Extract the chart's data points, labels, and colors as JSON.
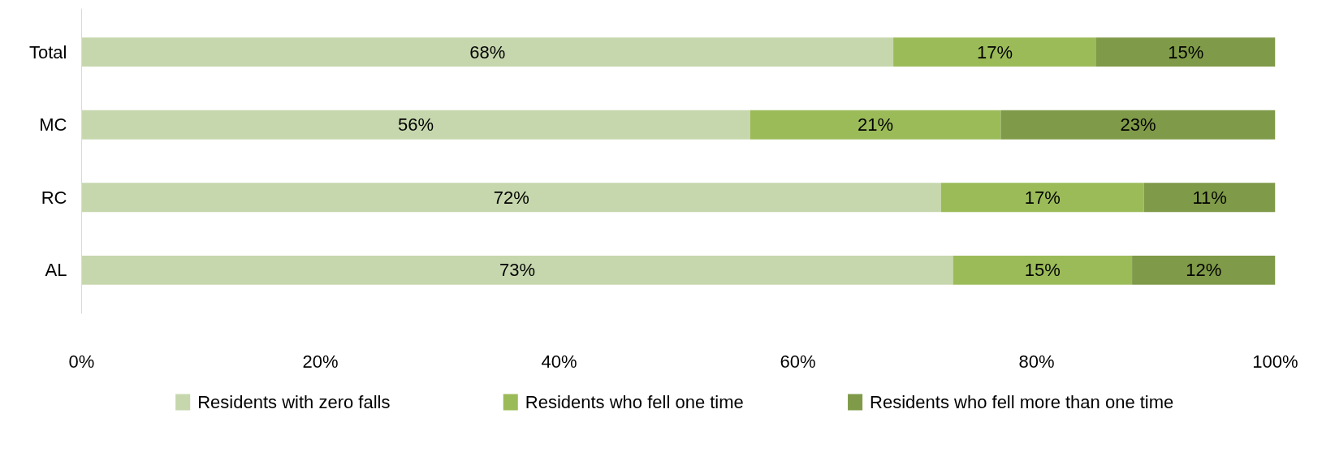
{
  "chart_data": {
    "type": "bar",
    "orientation": "horizontal",
    "stacked": true,
    "categories": [
      "Total",
      "MC",
      "RC",
      "AL"
    ],
    "series": [
      {
        "name": "Residents with zero falls",
        "color": "#c6d7ad",
        "values": [
          68,
          56,
          72,
          73
        ],
        "value_labels": [
          "68%",
          "56%",
          "72%",
          "73%"
        ]
      },
      {
        "name": "Residents who fell one time",
        "color": "#9bbb59",
        "values": [
          17,
          21,
          17,
          15
        ],
        "value_labels": [
          "17%",
          "21%",
          "17%",
          "15%"
        ]
      },
      {
        "name": "Residents who fell more than one time",
        "color": "#7f9a48",
        "values": [
          15,
          23,
          11,
          12
        ],
        "value_labels": [
          "15%",
          "23%",
          "11%",
          "12%"
        ]
      }
    ],
    "xlim": [
      0,
      100
    ],
    "xticks": [
      {
        "value": 0,
        "label": "0%"
      },
      {
        "value": 20,
        "label": "20%"
      },
      {
        "value": 40,
        "label": "40%"
      },
      {
        "value": 60,
        "label": "60%"
      },
      {
        "value": 80,
        "label": "80%"
      },
      {
        "value": 100,
        "label": "100%"
      }
    ],
    "grid": false,
    "legend": "bottom"
  }
}
